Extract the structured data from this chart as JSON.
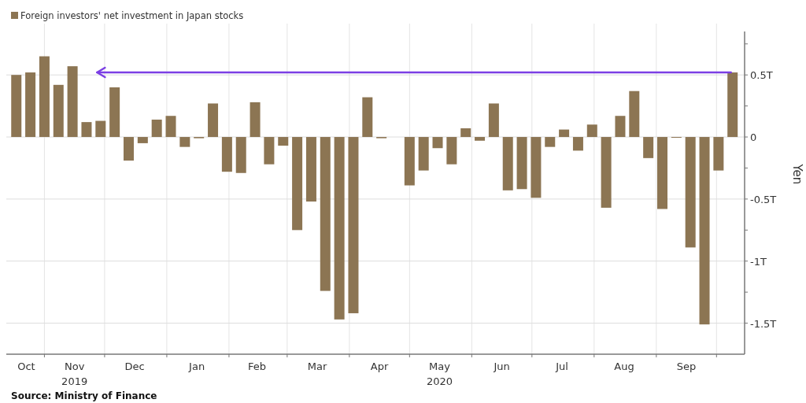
{
  "chart_data": {
    "type": "bar",
    "ylabel": "Yen",
    "legend": "top left",
    "grid": true,
    "x": [
      "2019-10-18",
      "2019-10-25",
      "2019-11-01",
      "2019-11-08",
      "2019-11-15",
      "2019-11-22",
      "2019-11-29",
      "2019-12-06",
      "2019-12-13",
      "2019-12-20",
      "2019-12-27",
      "2020-01-03",
      "2020-01-10",
      "2020-01-17",
      "2020-01-24",
      "2020-01-31",
      "2020-02-07",
      "2020-02-14",
      "2020-02-21",
      "2020-02-28",
      "2020-03-06",
      "2020-03-13",
      "2020-03-20",
      "2020-03-27",
      "2020-04-03",
      "2020-04-10",
      "2020-04-17",
      "2020-04-24",
      "2020-05-01",
      "2020-05-08",
      "2020-05-15",
      "2020-05-22",
      "2020-05-29",
      "2020-06-05",
      "2020-06-12",
      "2020-06-19",
      "2020-06-26",
      "2020-07-03",
      "2020-07-10",
      "2020-07-17",
      "2020-07-24",
      "2020-07-31",
      "2020-08-07",
      "2020-08-14",
      "2020-08-21",
      "2020-08-28",
      "2020-09-04",
      "2020-09-11",
      "2020-09-18",
      "2020-09-25",
      "2020-10-02",
      "2020-10-09"
    ],
    "series": [
      {
        "name": "Foreign investors' net investment in Japan stocks",
        "color": "#8c7553",
        "values": [
          0.5,
          0.52,
          0.65,
          0.42,
          0.57,
          0.12,
          0.13,
          0.4,
          -0.19,
          -0.05,
          0.14,
          0.17,
          -0.08,
          -0.01,
          0.27,
          -0.28,
          -0.29,
          0.28,
          -0.22,
          -0.07,
          -0.75,
          -0.52,
          -1.24,
          -1.47,
          -1.42,
          0.32,
          -0.01,
          null,
          -0.39,
          -0.27,
          -0.09,
          -0.22,
          0.07,
          -0.03,
          0.27,
          -0.43,
          -0.42,
          -0.49,
          -0.08,
          0.06,
          -0.11,
          0.1,
          -0.57,
          0.17,
          0.37,
          -0.17,
          -0.58,
          0,
          -0.89,
          -1.51,
          -0.27,
          0.52
        ]
      }
    ],
    "xlim": [
      "2019-10-13",
      "2020-10-15"
    ],
    "xticks": [
      {
        "value": "2019-10-23",
        "label": "Oct"
      },
      {
        "value": "2019-11-01",
        "label": null
      },
      {
        "value": "2019-11-16",
        "label": "Nov\n2019"
      },
      {
        "value": "2019-12-01",
        "label": null
      },
      {
        "value": "2019-12-16",
        "label": "Dec"
      },
      {
        "value": "2020-01-01",
        "label": null
      },
      {
        "value": "2020-01-16",
        "label": "Jan"
      },
      {
        "value": "2020-02-01",
        "label": null
      },
      {
        "value": "2020-02-15",
        "label": "Feb"
      },
      {
        "value": "2020-03-01",
        "label": null
      },
      {
        "value": "2020-03-16",
        "label": "Mar"
      },
      {
        "value": "2020-04-01",
        "label": null
      },
      {
        "value": "2020-04-16",
        "label": "Apr"
      },
      {
        "value": "2020-05-01",
        "label": null
      },
      {
        "value": "2020-05-16",
        "label": "May\n2020"
      },
      {
        "value": "2020-06-01",
        "label": null
      },
      {
        "value": "2020-06-16",
        "label": "Jun"
      },
      {
        "value": "2020-07-01",
        "label": null
      },
      {
        "value": "2020-07-16",
        "label": "Jul"
      },
      {
        "value": "2020-08-01",
        "label": null
      },
      {
        "value": "2020-08-16",
        "label": "Aug"
      },
      {
        "value": "2020-09-01",
        "label": null
      },
      {
        "value": "2020-09-16",
        "label": "Sep"
      },
      {
        "value": "2020-10-01",
        "label": null
      }
    ],
    "ylim": [
      -1.75,
      0.85
    ],
    "yticks": [
      {
        "value": -1.5,
        "label": "-1.5T"
      },
      {
        "value": -1.25,
        "label": null
      },
      {
        "value": -1,
        "label": "-1T"
      },
      {
        "value": -0.75,
        "label": null
      },
      {
        "value": -0.5,
        "label": "-0.5T"
      },
      {
        "value": -0.25,
        "label": null
      },
      0,
      {
        "value": 0.25,
        "label": null
      },
      {
        "value": 0.5,
        "label": "0.5T"
      },
      {
        "value": 0.75,
        "label": null
      }
    ],
    "ref_lines": [
      {
        "axis": "y",
        "value": 0.52,
        "color": "#7b3fe4"
      }
    ],
    "annotations": [
      "Source: Ministry of Finance"
    ]
  }
}
